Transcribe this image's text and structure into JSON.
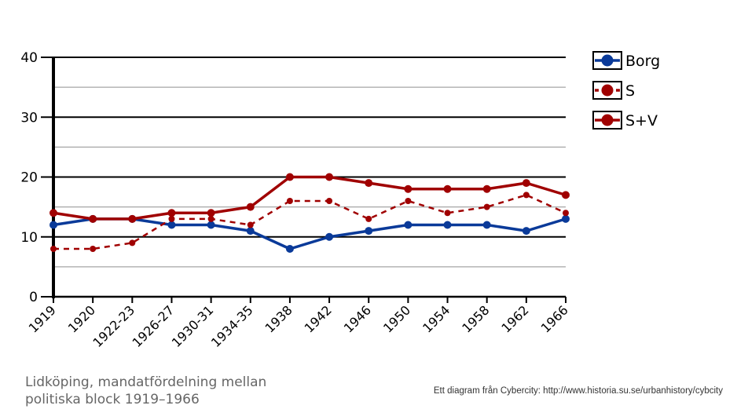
{
  "chart_data": {
    "type": "line",
    "title": "",
    "xlabel": "",
    "ylabel": "",
    "ylim": [
      0,
      40
    ],
    "yticks": [
      0,
      10,
      20,
      30,
      40
    ],
    "minor_gridlines": [
      5,
      15,
      25,
      35
    ],
    "grid": true,
    "legend_position": "top-right",
    "categories": [
      "1919",
      "1920",
      "1922-23",
      "1926-27",
      "1930-31",
      "1934-35",
      "1938",
      "1942",
      "1946",
      "1950",
      "1954",
      "1958",
      "1962",
      "1966"
    ],
    "series": [
      {
        "name": "Borg",
        "color": "#0a3a99",
        "style": "solid",
        "values": [
          12,
          13,
          13,
          12,
          12,
          11,
          8,
          10,
          11,
          12,
          12,
          12,
          11,
          13
        ]
      },
      {
        "name": "S",
        "color": "#a00000",
        "style": "dashed",
        "values": [
          8,
          8,
          9,
          13,
          13,
          12,
          16,
          16,
          13,
          16,
          14,
          15,
          17,
          14
        ]
      },
      {
        "name": "S+V",
        "color": "#a00000",
        "style": "solid",
        "values": [
          14,
          13,
          13,
          14,
          14,
          15,
          20,
          20,
          19,
          18,
          18,
          18,
          19,
          17
        ]
      }
    ]
  },
  "caption": "Lidköping, mandatfördelning mellan politiska block 1919–1966",
  "credit": "Ett diagram från Cybercity: http://www.historia.su.se/urbanhistory/cybcity"
}
